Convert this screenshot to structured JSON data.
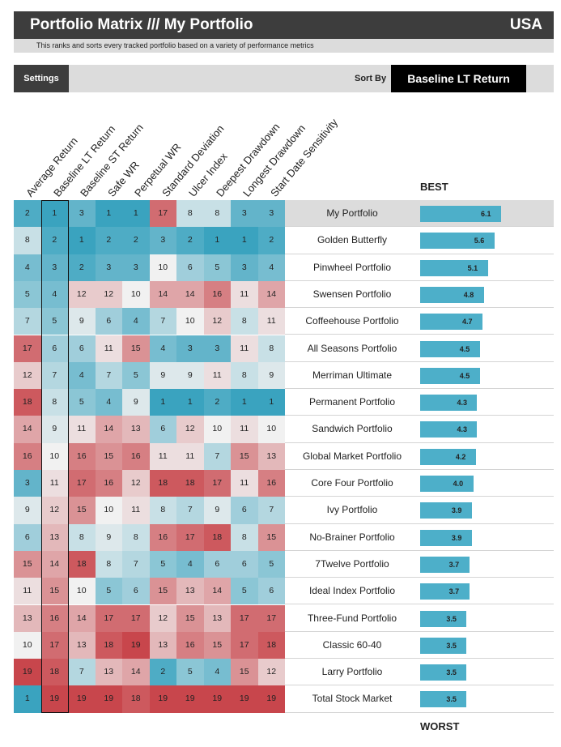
{
  "header": {
    "title": "Portfolio Matrix /// My Portfolio",
    "country": "USA",
    "subtitle": "This ranks and sorts every tracked portfolio based on a variety of performance metrics"
  },
  "toolbar": {
    "settings_label": "Settings",
    "sort_by_label": "Sort By",
    "sort_value": "Baseline LT Return"
  },
  "columns": [
    "Average Return",
    "Baseline LT Return",
    "Baseline ST Return",
    "Safe WR",
    "Perpetual WR",
    "Standard Deviation",
    "Ulcer Index",
    "Deepest Drawdown",
    "Longest Drawdown",
    "Start Date Sensitivity"
  ],
  "best_label": "BEST",
  "worst_label": "WORST",
  "colors": {
    "best": "#3aa3bf",
    "mid": "#f1f1f1",
    "worst": "#c8464c",
    "bar": "#4dafc9"
  },
  "max_rank": 19,
  "max_score": 6.1,
  "rows": [
    {
      "name": "My Portfolio",
      "ranks": [
        2,
        1,
        3,
        1,
        1,
        17,
        8,
        8,
        3,
        3
      ],
      "score": "6.1",
      "highlight": true
    },
    {
      "name": "Golden Butterfly",
      "ranks": [
        8,
        2,
        1,
        2,
        2,
        3,
        2,
        1,
        1,
        2
      ],
      "score": "5.6"
    },
    {
      "name": "Pinwheel Portfolio",
      "ranks": [
        4,
        3,
        2,
        3,
        3,
        10,
        6,
        5,
        3,
        4
      ],
      "score": "5.1"
    },
    {
      "name": "Swensen Portfolio",
      "ranks": [
        5,
        4,
        12,
        12,
        10,
        14,
        14,
        16,
        11,
        14
      ],
      "score": "4.8"
    },
    {
      "name": "Coffeehouse Portfolio",
      "ranks": [
        7,
        5,
        9,
        6,
        4,
        7,
        10,
        12,
        8,
        11
      ],
      "score": "4.7"
    },
    {
      "name": "All Seasons Portfolio",
      "ranks": [
        17,
        6,
        6,
        11,
        15,
        4,
        3,
        3,
        11,
        8
      ],
      "score": "4.5"
    },
    {
      "name": "Merriman Ultimate",
      "ranks": [
        12,
        7,
        4,
        7,
        5,
        9,
        9,
        11,
        8,
        9
      ],
      "score": "4.5"
    },
    {
      "name": "Permanent Portfolio",
      "ranks": [
        18,
        8,
        5,
        4,
        9,
        1,
        1,
        2,
        1,
        1
      ],
      "score": "4.3"
    },
    {
      "name": "Sandwich Portfolio",
      "ranks": [
        14,
        9,
        11,
        14,
        13,
        6,
        12,
        10,
        11,
        10
      ],
      "score": "4.3"
    },
    {
      "name": "Global Market Portfolio",
      "ranks": [
        16,
        10,
        16,
        15,
        16,
        11,
        11,
        7,
        15,
        13
      ],
      "score": "4.2"
    },
    {
      "name": "Core Four Portfolio",
      "ranks": [
        3,
        11,
        17,
        16,
        12,
        18,
        18,
        17,
        11,
        16
      ],
      "score": "4.0"
    },
    {
      "name": "Ivy Portfolio",
      "ranks": [
        9,
        12,
        15,
        10,
        11,
        8,
        7,
        9,
        6,
        7
      ],
      "score": "3.9"
    },
    {
      "name": "No-Brainer Portfolio",
      "ranks": [
        6,
        13,
        8,
        9,
        8,
        16,
        17,
        18,
        8,
        15
      ],
      "score": "3.9"
    },
    {
      "name": "7Twelve Portfolio",
      "ranks": [
        15,
        14,
        18,
        8,
        7,
        5,
        4,
        6,
        6,
        5
      ],
      "score": "3.7"
    },
    {
      "name": "Ideal Index Portfolio",
      "ranks": [
        11,
        15,
        10,
        5,
        6,
        15,
        13,
        14,
        5,
        6
      ],
      "score": "3.7"
    },
    {
      "name": "Three-Fund Portfolio",
      "ranks": [
        13,
        16,
        14,
        17,
        17,
        12,
        15,
        13,
        17,
        17
      ],
      "score": "3.5"
    },
    {
      "name": "Classic 60-40",
      "ranks": [
        10,
        17,
        13,
        18,
        19,
        13,
        16,
        15,
        17,
        18
      ],
      "score": "3.5"
    },
    {
      "name": "Larry Portfolio",
      "ranks": [
        19,
        18,
        7,
        13,
        14,
        2,
        5,
        4,
        15,
        12
      ],
      "score": "3.5"
    },
    {
      "name": "Total Stock Market",
      "ranks": [
        1,
        19,
        19,
        19,
        18,
        19,
        19,
        19,
        19,
        19
      ],
      "score": "3.5"
    }
  ]
}
